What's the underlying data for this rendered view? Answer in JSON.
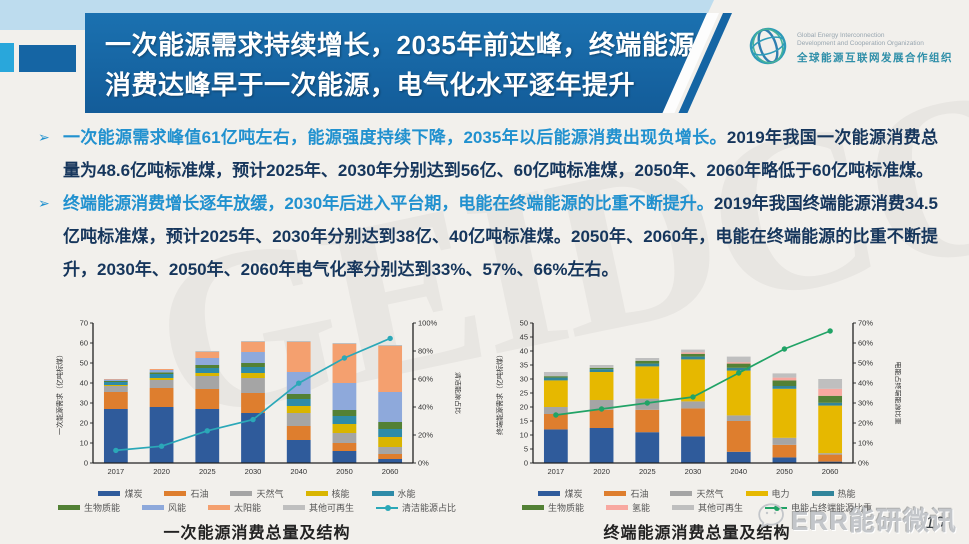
{
  "slide": {
    "title_line1": "一次能源需求持续增长，2035年前达峰，终端能源",
    "title_line2": "消费达峰早于一次能源，电气化水平逐年提升"
  },
  "logo": {
    "icon": "globe-icon",
    "org_en_line1": "Global Energy Interconnection",
    "org_en_line2": "Development and Cooperation Organization",
    "org_zh": "全球能源互联网发展合作组织"
  },
  "bullets": [
    {
      "marker": "➢",
      "highlight": "一次能源需求峰值61亿吨左右，能源强度持续下降，2035年以后能源消费出现负增长。",
      "rest": "2019年我国一次能源消费总量为48.6亿吨标准煤，预计2025年、2030年分别达到56亿、60亿吨标准煤，2050年、2060年略低于60亿吨标准煤。"
    },
    {
      "marker": "➢",
      "highlight": "终端能源消费增长逐年放缓，2030年后进入平台期，电能在终端能源的比重不断提升。",
      "rest": "2019年我国终端能源消费34.5亿吨标准煤，预计2025年、2030年分别达到38亿、40亿吨标准煤。2050年、2060年，电能在终端能源的比重不断提升，2030年、2050年、2060年电气化率分别达到33%、57%、66%左右。"
    }
  ],
  "chart_data": [
    {
      "type": "bar",
      "stacked": true,
      "title": "一次能源消费总量及结构",
      "categories": [
        "2017",
        "2020",
        "2025",
        "2030",
        "2040",
        "2050",
        "2060"
      ],
      "ylabel": "一次能源需求（亿吨标煤）",
      "ylim": [
        0,
        70
      ],
      "ytick_step": 10,
      "y2label": "清洁能源占比",
      "y2lim": [
        0,
        100
      ],
      "y2tick_step": 20,
      "grid": false,
      "legend_position": "bottom",
      "series": [
        {
          "name": "煤炭",
          "color": "#2f5b9b",
          "values": [
            27,
            28,
            27,
            25,
            11.5,
            6,
            2
          ]
        },
        {
          "name": "石油",
          "color": "#de7e2e",
          "values": [
            8.5,
            9.5,
            10,
            10,
            7,
            4,
            2.5
          ]
        },
        {
          "name": "天然气",
          "color": "#a5a5a5",
          "values": [
            3,
            4,
            6.5,
            7.5,
            6.5,
            5,
            3.5
          ]
        },
        {
          "name": "核能",
          "color": "#d9b500",
          "values": [
            0.5,
            1,
            1.5,
            2.5,
            3.5,
            4.5,
            5
          ]
        },
        {
          "name": "水能",
          "color": "#2e8ba8",
          "values": [
            1.5,
            2,
            2.5,
            3,
            3.5,
            4,
            4
          ]
        },
        {
          "name": "生物质能",
          "color": "#538135",
          "values": [
            0.5,
            0.8,
            1.5,
            2,
            2.5,
            3,
            3.5
          ]
        },
        {
          "name": "风能",
          "color": "#8ea9db",
          "values": [
            0.7,
            1.2,
            3.5,
            5.5,
            11,
            13.5,
            15
          ]
        },
        {
          "name": "太阳能",
          "color": "#f4a06f",
          "values": [
            0.3,
            0.5,
            3,
            5,
            15,
            19.5,
            23
          ]
        },
        {
          "name": "其他可再生",
          "color": "#bfbfbf",
          "values": [
            0,
            0,
            0.5,
            0.5,
            0.5,
            0.5,
            0.5
          ]
        }
      ],
      "line_series": {
        "name": "清洁能源占比",
        "color": "#2ba8b8",
        "axis": "y2",
        "values": [
          9,
          12,
          23,
          31,
          57,
          75,
          89
        ]
      }
    },
    {
      "type": "bar",
      "stacked": true,
      "title": "终端能源消费总量及结构",
      "categories": [
        "2017",
        "2020",
        "2025",
        "2030",
        "2040",
        "2050",
        "2060"
      ],
      "ylabel": "终端能源需求（亿吨标煤）",
      "ylim": [
        0,
        50
      ],
      "ytick_step": 5,
      "y2label": "电能占终端能源比重",
      "y2lim": [
        0,
        70
      ],
      "y2tick_step": 10,
      "grid": false,
      "legend_position": "bottom",
      "series": [
        {
          "name": "煤炭",
          "color": "#2f5b9b",
          "values": [
            12,
            12.5,
            11,
            9.5,
            4,
            2,
            0.5
          ]
        },
        {
          "name": "石油",
          "color": "#de7e2e",
          "values": [
            5.5,
            6.5,
            8,
            10,
            11,
            4.5,
            2.5
          ]
        },
        {
          "name": "天然气",
          "color": "#a5a5a5",
          "values": [
            2.5,
            3.5,
            4,
            2.5,
            2,
            2.5,
            0.5
          ]
        },
        {
          "name": "电力",
          "color": "#e6b800",
          "values": [
            9.5,
            10,
            11.5,
            15,
            16,
            17.5,
            17
          ]
        },
        {
          "name": "热能",
          "color": "#31859b",
          "values": [
            1,
            1,
            1,
            1,
            1,
            1,
            1
          ]
        },
        {
          "name": "生物质能",
          "color": "#538135",
          "values": [
            0.5,
            0.5,
            1,
            1,
            1.5,
            2,
            2.5
          ]
        },
        {
          "name": "氢能",
          "color": "#f8a8a0",
          "values": [
            0,
            0,
            0,
            0.5,
            0.5,
            1,
            2.5
          ]
        },
        {
          "name": "其他可再生",
          "color": "#bfbfbf",
          "values": [
            1.5,
            1,
            1,
            1,
            2,
            1.5,
            3.5
          ]
        }
      ],
      "line_series": {
        "name": "电能占终端能源比重",
        "color": "#21a366",
        "axis": "y2",
        "values": [
          24,
          27,
          30,
          33,
          45,
          57,
          66
        ]
      }
    }
  ],
  "watermarks": {
    "background_text": "GEIDCO",
    "brand": "ERR能研微讯",
    "brand_icon": "chat-bubble-icon"
  },
  "footer": {
    "page_number": "10"
  }
}
